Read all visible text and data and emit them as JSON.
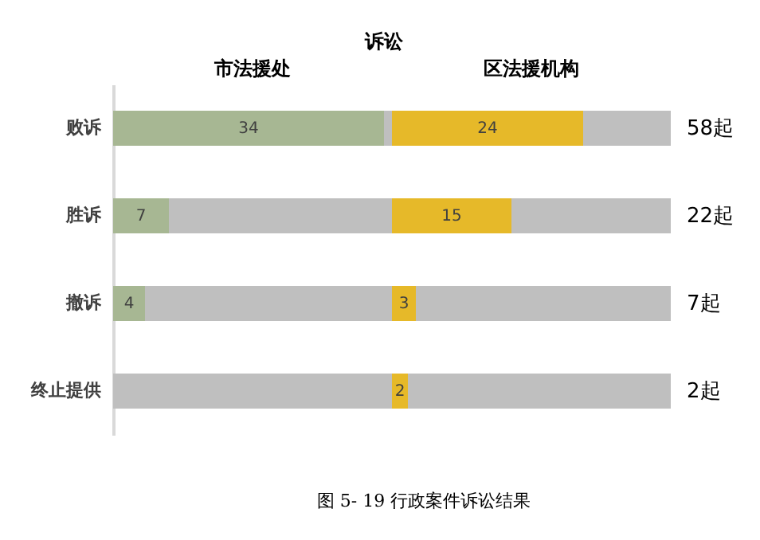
{
  "chart_data": {
    "type": "bar",
    "orientation": "horizontal",
    "stacked": true,
    "title": "诉讼",
    "categories": [
      "败诉",
      "胜诉",
      "撤诉",
      "终止提供"
    ],
    "series": [
      {
        "name": "市法援处",
        "color": "#a7b793",
        "values": [
          34,
          7,
          4,
          0
        ],
        "value_labels": [
          "34",
          "7",
          "4",
          null
        ]
      },
      {
        "color": "#bfbfbf",
        "values": [
          1,
          28,
          31,
          35
        ]
      },
      {
        "name": "区法援机构",
        "color": "#e6b929",
        "values": [
          24,
          15,
          3,
          2
        ],
        "value_labels": [
          "24",
          "15",
          "3",
          "2"
        ]
      },
      {
        "color": "#bfbfbf",
        "values": [
          11,
          20,
          32,
          33
        ]
      }
    ],
    "xlim": [
      0,
      70
    ],
    "tick_labels": "y",
    "grid": false,
    "legend": false,
    "annotations": [
      "58起",
      "22起",
      "7起",
      "2起",
      "图 5- 19 行政案件诉讼结果"
    ]
  }
}
